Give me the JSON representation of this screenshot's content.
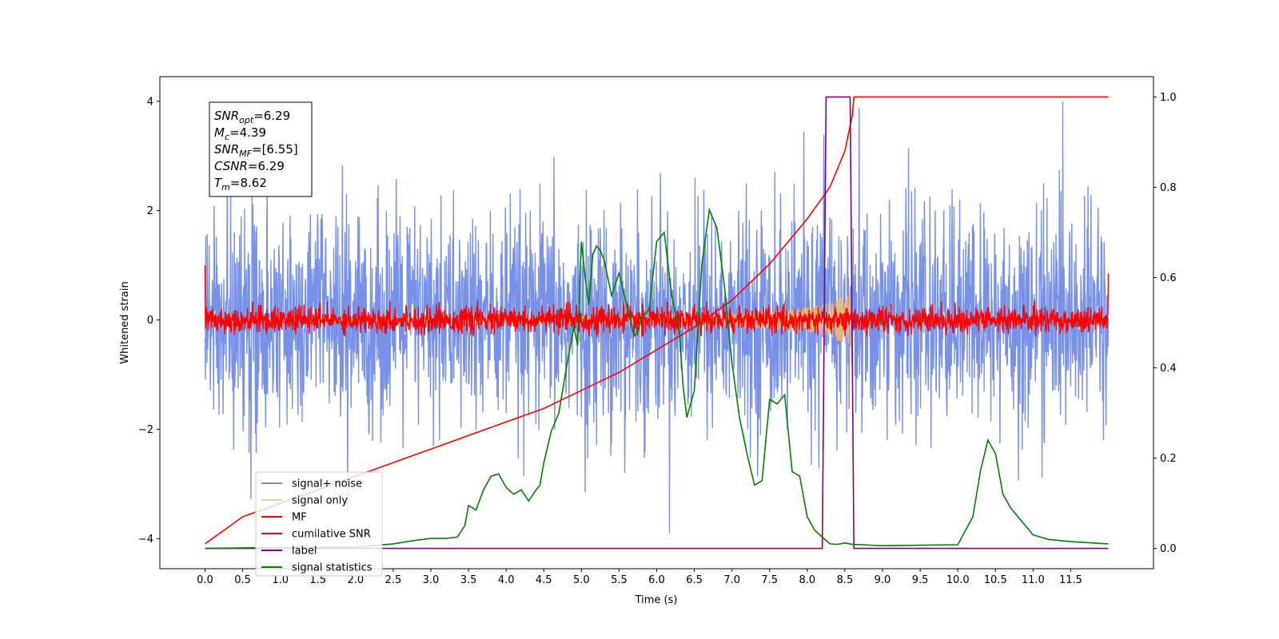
{
  "chart_data": {
    "type": "line",
    "xlabel": "Time (s)",
    "ylabel": "Whitened strain",
    "xlim": [
      -0.6,
      12.6
    ],
    "ylim": [
      -4.55,
      4.45
    ],
    "y2lim": [
      -0.045,
      1.045
    ],
    "x_ticks": [
      "0.0",
      "0.5",
      "1.0",
      "1.5",
      "2.0",
      "2.5",
      "3.0",
      "3.5",
      "4.0",
      "4.5",
      "5.0",
      "5.5",
      "6.0",
      "6.5",
      "7.0",
      "7.5",
      "8.0",
      "8.5",
      "9.0",
      "9.5",
      "10.0",
      "10.5",
      "11.0",
      "11.5"
    ],
    "y_ticks": [
      "4",
      "2",
      "0",
      "−2",
      "−4"
    ],
    "y2_ticks": [
      "1.0",
      "0.8",
      "0.6",
      "0.4",
      "0.2",
      "0.0"
    ],
    "info_box": [
      {
        "name": "SNR",
        "sub": "opt",
        "value": "=6.29"
      },
      {
        "name": "M",
        "sub": "c",
        "value": "=4.39"
      },
      {
        "name": "SNR",
        "sub": "MF",
        "value": "=[6.55]"
      },
      {
        "name": "CSNR",
        "sub": "",
        "value": "=6.29"
      },
      {
        "name": "T",
        "sub": "m",
        "value": "=8.62"
      }
    ],
    "legend_position": "lower-left",
    "series": [
      {
        "name": "signal+ noise",
        "color": "#6b88e6",
        "axis": "left",
        "kind": "noise",
        "t_range": [
          0.0,
          12.0
        ],
        "std": 0.95
      },
      {
        "name": "signal only",
        "color": "#f5b86a",
        "axis": "left",
        "kind": "chirp",
        "t_range": [
          0.0,
          8.62
        ],
        "amp_max": 0.55
      },
      {
        "name": "MF",
        "color": "#ff0000",
        "axis": "left",
        "kind": "noise",
        "t_range": [
          0.0,
          12.0
        ],
        "std": 0.12
      },
      {
        "name": "cumilative SNR",
        "color": "#ff0000",
        "axis": "right",
        "x": [
          0.0,
          0.5,
          1.0,
          1.5,
          2.0,
          2.5,
          3.0,
          3.5,
          4.0,
          4.5,
          5.0,
          5.5,
          6.0,
          6.5,
          7.0,
          7.5,
          8.0,
          8.3,
          8.5,
          8.6,
          8.62,
          9.0,
          10.0,
          11.0,
          12.0
        ],
        "y": [
          0.01,
          0.07,
          0.1,
          0.13,
          0.16,
          0.19,
          0.22,
          0.25,
          0.28,
          0.31,
          0.35,
          0.39,
          0.44,
          0.49,
          0.55,
          0.63,
          0.73,
          0.8,
          0.88,
          0.96,
          1.0,
          1.0,
          1.0,
          1.0,
          1.0
        ]
      },
      {
        "name": "label",
        "color": "#800080",
        "axis": "right",
        "x": [
          0.0,
          8.2,
          8.25,
          8.57,
          8.62,
          12.0
        ],
        "y": [
          0.0,
          0.0,
          1.0,
          1.0,
          0.0,
          0.0
        ]
      },
      {
        "name": "signal statistics",
        "color": "#008000",
        "axis": "right",
        "x": [
          0.0,
          1.0,
          2.0,
          2.5,
          2.8,
          3.0,
          3.2,
          3.35,
          3.45,
          3.5,
          3.6,
          3.7,
          3.8,
          3.9,
          4.0,
          4.1,
          4.2,
          4.3,
          4.4,
          4.45,
          4.5,
          4.6,
          4.7,
          4.8,
          4.9,
          4.95,
          5.0,
          5.05,
          5.1,
          5.15,
          5.2,
          5.25,
          5.3,
          5.4,
          5.5,
          5.6,
          5.7,
          5.75,
          5.8,
          5.9,
          6.0,
          6.1,
          6.2,
          6.3,
          6.35,
          6.4,
          6.5,
          6.6,
          6.7,
          6.8,
          6.9,
          7.0,
          7.1,
          7.2,
          7.3,
          7.4,
          7.5,
          7.6,
          7.7,
          7.8,
          7.9,
          8.0,
          8.1,
          8.2,
          8.3,
          8.4,
          8.5,
          8.6,
          9.0,
          9.5,
          10.0,
          10.2,
          10.3,
          10.4,
          10.5,
          10.6,
          10.7,
          10.8,
          11.0,
          11.2,
          11.5,
          12.0
        ],
        "y": [
          0.0,
          0.002,
          0.003,
          0.01,
          0.018,
          0.022,
          0.022,
          0.025,
          0.05,
          0.095,
          0.085,
          0.13,
          0.16,
          0.165,
          0.135,
          0.12,
          0.13,
          0.105,
          0.13,
          0.14,
          0.19,
          0.26,
          0.3,
          0.4,
          0.49,
          0.45,
          0.68,
          0.6,
          0.54,
          0.65,
          0.67,
          0.66,
          0.64,
          0.56,
          0.61,
          0.54,
          0.47,
          0.48,
          0.51,
          0.53,
          0.68,
          0.7,
          0.56,
          0.48,
          0.36,
          0.29,
          0.35,
          0.63,
          0.75,
          0.71,
          0.58,
          0.41,
          0.29,
          0.21,
          0.14,
          0.15,
          0.33,
          0.32,
          0.34,
          0.17,
          0.16,
          0.07,
          0.04,
          0.025,
          0.01,
          0.009,
          0.012,
          0.009,
          0.006,
          0.007,
          0.008,
          0.07,
          0.17,
          0.24,
          0.21,
          0.12,
          0.09,
          0.07,
          0.03,
          0.02,
          0.015,
          0.01
        ]
      }
    ]
  }
}
